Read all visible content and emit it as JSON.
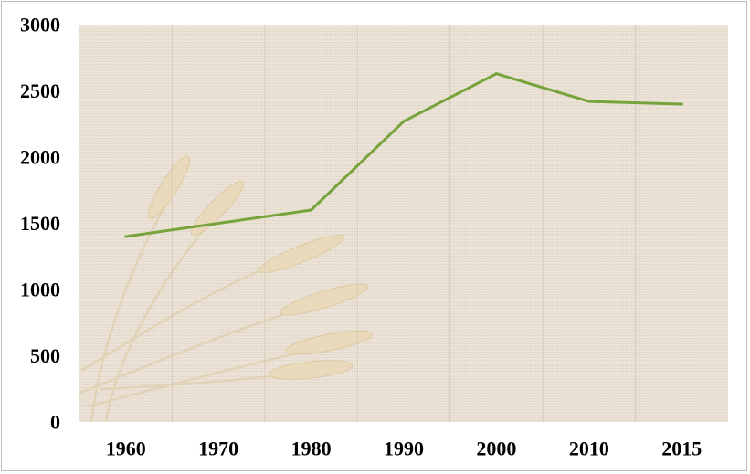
{
  "chart_data": {
    "type": "line",
    "title": "",
    "xlabel": "",
    "ylabel": "",
    "categories": [
      "1960",
      "1970",
      "1980",
      "1990",
      "2000",
      "2010",
      "2015"
    ],
    "series": [
      {
        "values": [
          1400,
          1500,
          1600,
          2270,
          2630,
          2420,
          2400
        ],
        "color": "#77a33c"
      }
    ],
    "ylim": [
      0,
      3000
    ],
    "yticks": [
      "0",
      "500",
      "1000",
      "1500",
      "2000",
      "2500",
      "3000"
    ],
    "grid": "vertical",
    "legend": "none",
    "background": "wheat-on-burlap-photo"
  }
}
